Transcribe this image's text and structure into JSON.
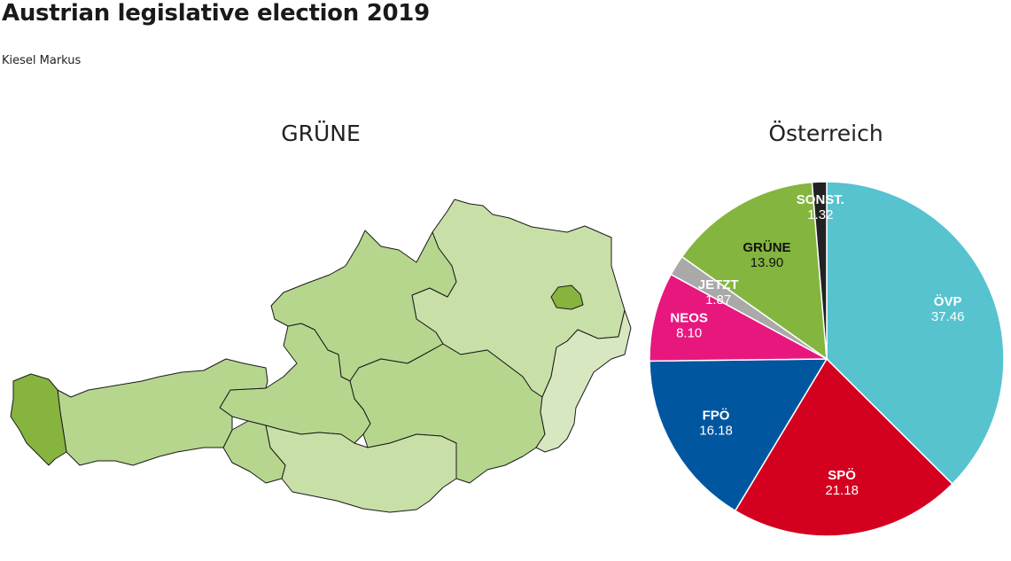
{
  "header": {
    "title": "Austrian legislative election 2019",
    "author": "Kiesel Markus"
  },
  "map": {
    "title": "GRÜNE",
    "color_scale": [
      "#d7e8c1",
      "#c8e0a8",
      "#b6d68e",
      "#9cc76a",
      "#86b43f"
    ],
    "regions": [
      {
        "shape": "vorarlberg",
        "shade": 4
      },
      {
        "shape": "tirol-west",
        "shade": 2
      },
      {
        "shape": "osttirol",
        "shade": 2
      },
      {
        "shape": "salzburg",
        "shade": 2
      },
      {
        "shape": "kaernten",
        "shade": 1
      },
      {
        "shape": "steiermark",
        "shade": 2
      },
      {
        "shape": "oberoesterreich",
        "shade": 2
      },
      {
        "shape": "niederoesterreich",
        "shade": 1
      },
      {
        "shape": "wien",
        "shade": 4
      },
      {
        "shape": "burgenland",
        "shade": 0
      }
    ]
  },
  "chart_data": {
    "type": "pie",
    "title": "Österreich",
    "slices": [
      {
        "label": "ÖVP",
        "value": 37.46,
        "color": "#56c3cf",
        "text_color": "#ffffff"
      },
      {
        "label": "SPÖ",
        "value": 21.18,
        "color": "#d3001f",
        "text_color": "#ffffff"
      },
      {
        "label": "FPÖ",
        "value": 16.18,
        "color": "#0057a0",
        "text_color": "#ffffff"
      },
      {
        "label": "NEOS",
        "value": 8.1,
        "color": "#e8177e",
        "text_color": "#ffffff"
      },
      {
        "label": "JETZT",
        "value": 1.87,
        "color": "#a9a9a9",
        "text_color": "#ffffff"
      },
      {
        "label": "GRÜNE",
        "value": 13.9,
        "color": "#84b53f",
        "text_color": "#111111"
      },
      {
        "label": "SONST.",
        "value": 1.32,
        "color": "#222222",
        "text_color": "#ffffff"
      }
    ]
  }
}
